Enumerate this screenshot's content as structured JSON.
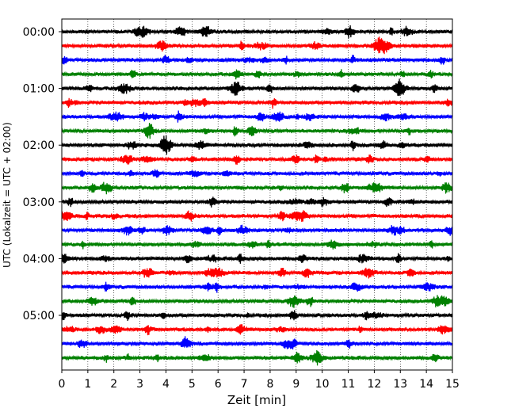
{
  "chart_data": {
    "type": "line",
    "title": "",
    "xlabel": "Zeit  [min]",
    "ylabel": "UTC (Lokalzeit = UTC + 02:00)",
    "xlim": [
      0,
      15
    ],
    "x_ticks": [
      0,
      1,
      2,
      3,
      4,
      5,
      6,
      7,
      8,
      9,
      10,
      11,
      12,
      13,
      14,
      15
    ],
    "y_tick_labels": [
      "00:00",
      "01:00",
      "02:00",
      "03:00",
      "04:00",
      "05:00"
    ],
    "grid": "vertical dotted lines at each minute",
    "trace_interval_min": 15,
    "trace_colors": [
      "#000000",
      "#ff0000",
      "#0000ff",
      "#008000"
    ],
    "trace_start_times": [
      "00:00",
      "00:15",
      "00:30",
      "00:45",
      "01:00",
      "01:15",
      "01:30",
      "01:45",
      "02:00",
      "02:15",
      "02:30",
      "02:45",
      "03:00",
      "03:15",
      "03:30",
      "03:45",
      "04:00",
      "04:15",
      "04:30",
      "04:45",
      "05:00",
      "05:15",
      "05:30",
      "05:45"
    ]
  }
}
